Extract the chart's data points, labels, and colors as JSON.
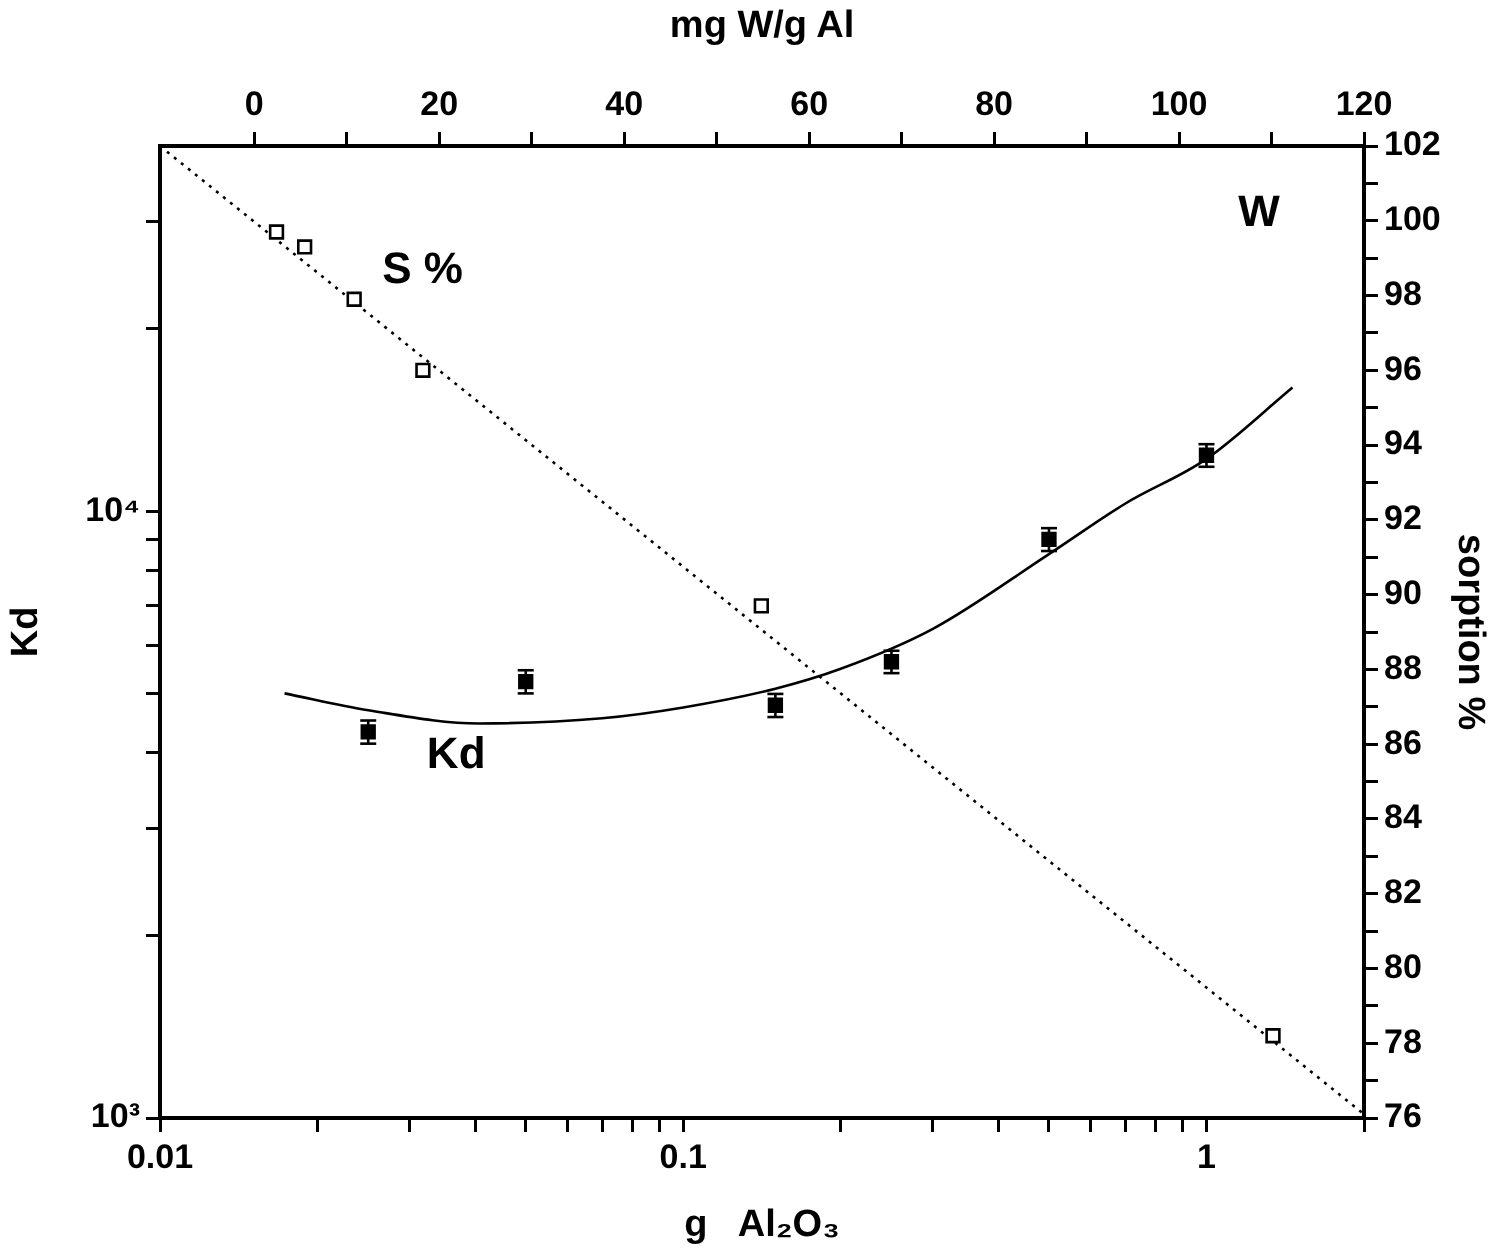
{
  "chart_data": {
    "type": "scatter",
    "xlabel": "g   Al₂O₃",
    "ylabel": "Kd",
    "y2label": "sorption %",
    "x2label": "mg W/g Al",
    "log": "xy",
    "grid": false,
    "legend": false,
    "xlim": [
      0.01,
      2
    ],
    "ylim": [
      1000,
      40000
    ],
    "y2lim": [
      76,
      102
    ],
    "x2lim": [
      -10.2,
      120
    ],
    "xticks": [
      0.01,
      {
        "value": 0.02,
        "label": null
      },
      {
        "value": 0.03,
        "label": null
      },
      {
        "value": 0.04,
        "label": null
      },
      {
        "value": 0.05,
        "label": null
      },
      {
        "value": 0.06,
        "label": null
      },
      {
        "value": 0.07,
        "label": null
      },
      {
        "value": 0.08,
        "label": null
      },
      {
        "value": 0.09,
        "label": null
      },
      0.1,
      {
        "value": 0.2,
        "label": null
      },
      {
        "value": 0.3,
        "label": null
      },
      {
        "value": 0.4,
        "label": null
      },
      {
        "value": 0.5,
        "label": null
      },
      {
        "value": 0.6,
        "label": null
      },
      {
        "value": 0.7,
        "label": null
      },
      {
        "value": 0.8,
        "label": null
      },
      {
        "value": 0.9,
        "label": null
      },
      1,
      {
        "value": 2,
        "label": null
      }
    ],
    "yticks": [
      {
        "value": 1000,
        "label": "10³"
      },
      {
        "value": 2000,
        "label": null
      },
      {
        "value": 3000,
        "label": null
      },
      {
        "value": 4000,
        "label": null
      },
      {
        "value": 5000,
        "label": null
      },
      {
        "value": 6000,
        "label": null
      },
      {
        "value": 7000,
        "label": null
      },
      {
        "value": 8000,
        "label": null
      },
      {
        "value": 9000,
        "label": null
      },
      {
        "value": 10000,
        "label": "10⁴"
      },
      {
        "value": 20000,
        "label": null
      },
      {
        "value": 30000,
        "label": null
      }
    ],
    "y2ticks": [
      76,
      {
        "value": 77,
        "label": null
      },
      78,
      {
        "value": 79,
        "label": null
      },
      80,
      {
        "value": 81,
        "label": null
      },
      82,
      {
        "value": 83,
        "label": null
      },
      84,
      {
        "value": 85,
        "label": null
      },
      86,
      {
        "value": 87,
        "label": null
      },
      88,
      {
        "value": 89,
        "label": null
      },
      90,
      {
        "value": 91,
        "label": null
      },
      92,
      {
        "value": 93,
        "label": null
      },
      94,
      {
        "value": 95,
        "label": null
      },
      96,
      {
        "value": 97,
        "label": null
      },
      98,
      {
        "value": 99,
        "label": null
      },
      100,
      {
        "value": 101,
        "label": null
      },
      102
    ],
    "x2ticks": [
      0,
      {
        "value": 10,
        "label": null
      },
      20,
      {
        "value": 30,
        "label": null
      },
      40,
      {
        "value": 50,
        "label": null
      },
      60,
      {
        "value": 70,
        "label": null
      },
      80,
      {
        "value": 90,
        "label": null
      },
      100,
      {
        "value": 110,
        "label": null
      },
      120
    ],
    "annotations": [
      "S %",
      "Kd",
      "W"
    ],
    "series": [
      {
        "type": "scatter",
        "color": "#000000",
        "marker": "square",
        "x": [
          0.025,
          0.05,
          0.15,
          0.25,
          0.5,
          1.0
        ],
        "values": [
          4330,
          5240,
          4790,
          5650,
          8990,
          12370
        ],
        "errors": [
          190,
          230,
          210,
          240,
          390,
          530
        ]
      },
      {
        "type": "line",
        "color": "#000000",
        "marker": "none",
        "line_style": "solid",
        "x": [
          0.0173,
          0.025,
          0.0407,
          0.07,
          0.1,
          0.15,
          0.2,
          0.3,
          0.5,
          0.7,
          1.0,
          1.46
        ],
        "values": [
          5010,
          4700,
          4470,
          4560,
          4750,
          5100,
          5500,
          6400,
          8500,
          10300,
          12200,
          16000
        ]
      },
      {
        "type": "scatter",
        "axis": "y2",
        "color": "#000000",
        "marker": "square",
        "x": [
          0.0167,
          0.0189,
          0.0235,
          0.0318,
          0.141,
          1.34
        ],
        "values": [
          99.7,
          99.3,
          97.9,
          96.0,
          89.7,
          78.2
        ]
      },
      {
        "type": "line",
        "axis": "y2",
        "color": "#000000",
        "marker": "none",
        "line_style": "dotted",
        "x": [
          0.01,
          2
        ],
        "values": [
          102,
          76.1
        ]
      }
    ]
  }
}
